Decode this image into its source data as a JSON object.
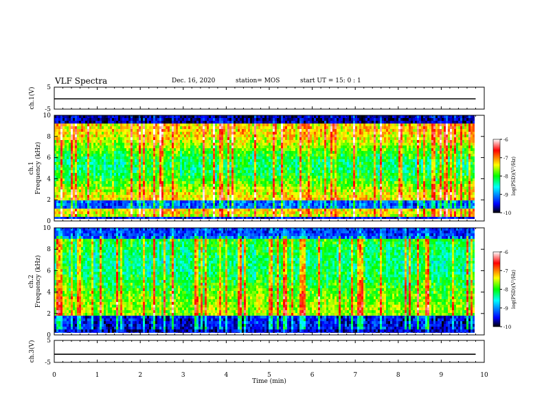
{
  "header": {
    "title": "VLF Spectra",
    "date": "Dec. 16, 2020",
    "station": "station= MOS",
    "start": "start  UT =   15: 0  : 1"
  },
  "chart_data": [
    {
      "type": "line",
      "title": "",
      "ylabel": "ch.1(V)",
      "ylim": [
        -5,
        5
      ],
      "yticks": [
        "5",
        "-5"
      ],
      "xlim": [
        0,
        10
      ],
      "series": [
        {
          "x": [
            0,
            9.8
          ],
          "values": [
            -0.3,
            -0.3
          ]
        }
      ]
    },
    {
      "type": "heatmap",
      "ylabel": "ch.1\nFrequency (kHz)",
      "ylim": [
        0,
        10
      ],
      "yticks": [
        "0",
        "2",
        "4",
        "6",
        "8",
        "10"
      ],
      "xlim": [
        0,
        10
      ],
      "data_xmax": 9.8,
      "colorbar": {
        "label": "log(PSD)(V²/Hz)",
        "ticks": [
          "-6",
          "-7",
          "-8",
          "-9",
          "-10"
        ],
        "range": [
          -10,
          -6
        ]
      }
    },
    {
      "type": "heatmap",
      "ylabel": "ch.2\nFrequency (kHz)",
      "ylim": [
        0,
        10
      ],
      "yticks": [
        "0",
        "2",
        "4",
        "6",
        "8",
        "10"
      ],
      "xlim": [
        0,
        10
      ],
      "data_xmax": 9.8,
      "colorbar": {
        "label": "log(PSD)(V²/Hz)",
        "ticks": [
          "-6",
          "-7",
          "-8",
          "-9",
          "-10"
        ],
        "range": [
          -10,
          -6
        ]
      }
    },
    {
      "type": "line",
      "ylabel": "ch.3(V)",
      "ylim": [
        -5,
        5
      ],
      "yticks": [
        "5",
        "-5"
      ],
      "xlim": [
        0,
        10
      ],
      "series": [
        {
          "x": [
            0,
            9.8
          ],
          "values": [
            -1.3,
            -1.3
          ]
        }
      ]
    }
  ],
  "xaxis": {
    "label": "Time  (min)",
    "ticks": [
      "0",
      "1",
      "2",
      "3",
      "4",
      "5",
      "6",
      "7",
      "8",
      "9",
      "10"
    ]
  },
  "colors": {
    "scale": [
      "#000000",
      "#0000ff",
      "#00ffff",
      "#00ff00",
      "#ffff00",
      "#ff0000",
      "#ffffff"
    ]
  }
}
